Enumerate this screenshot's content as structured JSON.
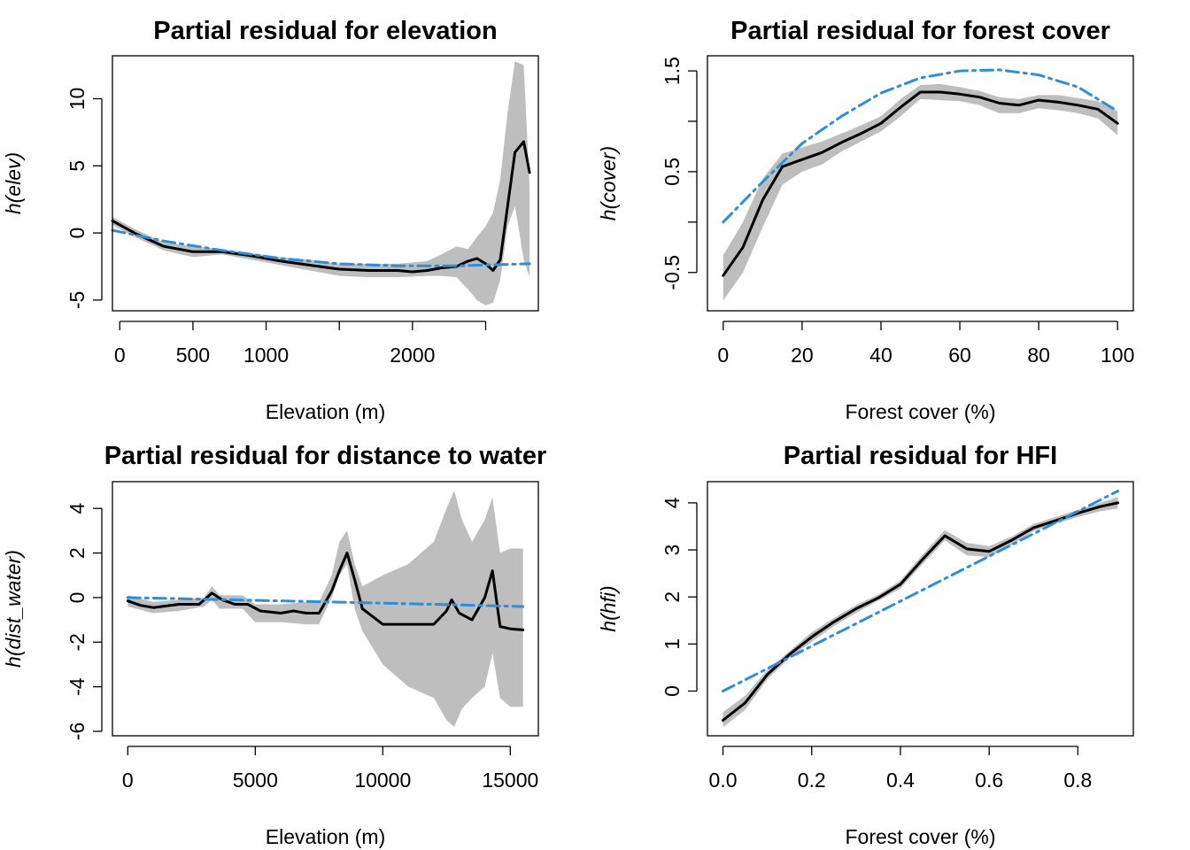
{
  "chart_data": [
    {
      "type": "line",
      "title": "Partial residual for elevation",
      "xlabel": "Elevation (m)",
      "ylabel": "h(elev)",
      "xlim": [
        -50,
        2860
      ],
      "ylim": [
        -5.8,
        13.2
      ],
      "x_ticks": [
        0,
        500,
        1000,
        1500,
        2000,
        2500
      ],
      "x_tick_labels": [
        "0",
        "500",
        "1000",
        "",
        "2000",
        ""
      ],
      "y_ticks": [
        -5,
        0,
        5,
        10
      ],
      "y_tick_labels": [
        "-5",
        "0",
        "5",
        "10"
      ],
      "series": [
        {
          "role": "band",
          "color": "#bebebe",
          "x": [
            -50,
            100,
            300,
            500,
            700,
            900,
            1100,
            1300,
            1500,
            1700,
            1900,
            2100,
            2200,
            2300,
            2380,
            2440,
            2500,
            2550,
            2600,
            2650,
            2700,
            2760,
            2800
          ],
          "upper": [
            1.2,
            0.3,
            -0.7,
            -1.0,
            -1.2,
            -1.5,
            -1.8,
            -2.0,
            -2.3,
            -2.3,
            -2.3,
            -2.1,
            -1.6,
            -1.0,
            -1.2,
            -0.3,
            0.5,
            1.5,
            4.0,
            9.0,
            12.8,
            12.5,
            3.5
          ],
          "lower": [
            0.6,
            -0.3,
            -1.3,
            -1.8,
            -1.6,
            -2.0,
            -2.4,
            -2.8,
            -3.2,
            -3.3,
            -3.3,
            -3.2,
            -3.2,
            -3.3,
            -4.2,
            -5.0,
            -5.4,
            -5.2,
            -3.5,
            0.5,
            2.0,
            -2.0,
            -3.3
          ]
        },
        {
          "role": "fit",
          "color": "#000000",
          "x": [
            -50,
            100,
            300,
            500,
            700,
            900,
            1100,
            1300,
            1500,
            1700,
            1900,
            2000,
            2100,
            2200,
            2300,
            2380,
            2440,
            2500,
            2550,
            2600,
            2650,
            2700,
            2760,
            2800
          ],
          "y": [
            0.9,
            0.0,
            -1.0,
            -1.4,
            -1.4,
            -1.7,
            -2.1,
            -2.4,
            -2.7,
            -2.8,
            -2.8,
            -2.9,
            -2.8,
            -2.6,
            -2.5,
            -2.1,
            -1.9,
            -2.3,
            -2.8,
            -2.0,
            2.0,
            6.0,
            6.8,
            4.5
          ]
        },
        {
          "role": "reference",
          "color": "#2d8fd8",
          "x": [
            -50,
            300,
            700,
            1100,
            1500,
            1900,
            2300,
            2800
          ],
          "y": [
            0.2,
            -0.6,
            -1.3,
            -1.9,
            -2.3,
            -2.45,
            -2.45,
            -2.3
          ]
        }
      ]
    },
    {
      "type": "line",
      "title": "Partial residual for forest cover",
      "xlabel": "Forest cover (%)",
      "ylabel": "h(cover)",
      "xlim": [
        -4,
        104
      ],
      "ylim": [
        -0.88,
        1.65
      ],
      "x_ticks": [
        0,
        20,
        40,
        60,
        80,
        100
      ],
      "x_tick_labels": [
        "0",
        "20",
        "40",
        "60",
        "80",
        "100"
      ],
      "y_ticks": [
        -0.5,
        0,
        0.5,
        1,
        1.5
      ],
      "y_tick_labels": [
        "-0.5",
        "",
        "0.5",
        "",
        "1.5"
      ],
      "series": [
        {
          "role": "band",
          "color": "#bebebe",
          "x": [
            0,
            5,
            10,
            15,
            20,
            25,
            30,
            35,
            40,
            45,
            50,
            55,
            60,
            65,
            70,
            75,
            80,
            85,
            90,
            95,
            100
          ],
          "upper": [
            -0.33,
            0.0,
            0.43,
            0.68,
            0.74,
            0.8,
            0.88,
            0.96,
            1.05,
            1.22,
            1.36,
            1.37,
            1.34,
            1.3,
            1.24,
            1.22,
            1.26,
            1.26,
            1.23,
            1.2,
            1.1
          ],
          "lower": [
            -0.78,
            -0.5,
            -0.05,
            0.37,
            0.5,
            0.57,
            0.7,
            0.8,
            0.9,
            1.05,
            1.22,
            1.21,
            1.2,
            1.16,
            1.08,
            1.08,
            1.13,
            1.11,
            1.08,
            1.03,
            0.86
          ]
        },
        {
          "role": "fit",
          "color": "#000000",
          "x": [
            0,
            5,
            10,
            15,
            20,
            25,
            30,
            35,
            40,
            45,
            50,
            55,
            60,
            65,
            70,
            75,
            80,
            85,
            90,
            95,
            100
          ],
          "y": [
            -0.53,
            -0.25,
            0.22,
            0.55,
            0.62,
            0.69,
            0.79,
            0.88,
            0.98,
            1.14,
            1.29,
            1.29,
            1.27,
            1.24,
            1.18,
            1.16,
            1.21,
            1.19,
            1.16,
            1.12,
            0.98
          ]
        },
        {
          "role": "reference",
          "color": "#2d8fd8",
          "x": [
            0,
            10,
            20,
            30,
            40,
            50,
            60,
            70,
            80,
            90,
            100
          ],
          "y": [
            0.0,
            0.4,
            0.78,
            1.05,
            1.28,
            1.43,
            1.5,
            1.51,
            1.46,
            1.34,
            1.1
          ]
        }
      ]
    },
    {
      "type": "line",
      "title": "Partial residual for distance to water",
      "xlabel": "Elevation (m)",
      "ylabel": "h(dist_water)",
      "xlim": [
        -600,
        16100
      ],
      "ylim": [
        -6.2,
        5.2
      ],
      "x_ticks": [
        0,
        5000,
        10000,
        15000
      ],
      "x_tick_labels": [
        "0",
        "5000",
        "10000",
        "15000"
      ],
      "y_ticks": [
        -6,
        -4,
        -2,
        0,
        2,
        4
      ],
      "y_tick_labels": [
        "-6",
        "-4",
        "-2",
        "0",
        "2",
        "4"
      ],
      "series": [
        {
          "role": "band",
          "color": "#bebebe",
          "x": [
            0,
            1000,
            2000,
            3000,
            3300,
            3600,
            4500,
            5000,
            6000,
            7000,
            7500,
            8000,
            8300,
            8600,
            8900,
            9200,
            10000,
            11000,
            12000,
            12500,
            12800,
            13100,
            13500,
            14000,
            14300,
            14600,
            15000,
            15500
          ],
          "upper": [
            0.1,
            -0.2,
            -0.1,
            0.0,
            0.5,
            0.1,
            0.1,
            -0.3,
            -0.3,
            -0.2,
            -0.2,
            1.0,
            2.5,
            3.0,
            1.5,
            0.5,
            1.0,
            1.5,
            2.5,
            4.0,
            4.8,
            3.5,
            2.5,
            3.5,
            4.5,
            2.0,
            2.2,
            2.2
          ],
          "lower": [
            -0.4,
            -0.7,
            -0.6,
            -0.4,
            -0.1,
            -0.5,
            -0.5,
            -1.1,
            -1.1,
            -1.2,
            -1.2,
            0.0,
            1.0,
            1.5,
            -0.5,
            -1.5,
            -3.0,
            -4.0,
            -4.5,
            -5.5,
            -5.8,
            -5.0,
            -4.5,
            -4.0,
            -2.5,
            -4.5,
            -4.9,
            -4.9
          ]
        },
        {
          "role": "fit",
          "color": "#000000",
          "x": [
            0,
            500,
            1000,
            2000,
            2800,
            3300,
            3700,
            4200,
            4700,
            5200,
            6000,
            6500,
            7000,
            7500,
            8000,
            8300,
            8600,
            8900,
            9200,
            10000,
            11000,
            12000,
            12500,
            12700,
            13000,
            13500,
            14000,
            14300,
            14600,
            15000,
            15500
          ],
          "y": [
            -0.15,
            -0.35,
            -0.45,
            -0.3,
            -0.3,
            0.2,
            -0.1,
            -0.3,
            -0.3,
            -0.6,
            -0.7,
            -0.6,
            -0.7,
            -0.7,
            0.3,
            1.2,
            2.0,
            0.8,
            -0.5,
            -1.2,
            -1.2,
            -1.2,
            -0.6,
            -0.1,
            -0.7,
            -1.0,
            0.0,
            1.2,
            -1.3,
            -1.4,
            -1.45
          ]
        },
        {
          "role": "reference",
          "color": "#2d8fd8",
          "x": [
            0,
            4000,
            8000,
            12000,
            15500
          ],
          "y": [
            0.0,
            -0.1,
            -0.2,
            -0.3,
            -0.4
          ]
        }
      ]
    },
    {
      "type": "line",
      "title": "Partial residual for HFI",
      "xlabel": "Forest cover (%)",
      "ylabel": "h(hfi)",
      "xlim": [
        -0.035,
        0.925
      ],
      "ylim": [
        -0.95,
        4.45
      ],
      "x_ticks": [
        0.0,
        0.2,
        0.4,
        0.6,
        0.8
      ],
      "x_tick_labels": [
        "0.0",
        "0.2",
        "0.4",
        "0.6",
        "0.8"
      ],
      "y_ticks": [
        0,
        1,
        2,
        3,
        4
      ],
      "y_tick_labels": [
        "0",
        "1",
        "2",
        "3",
        "4"
      ],
      "series": [
        {
          "role": "band",
          "color": "#bebebe",
          "x": [
            0.0,
            0.05,
            0.1,
            0.15,
            0.2,
            0.25,
            0.3,
            0.35,
            0.4,
            0.45,
            0.5,
            0.55,
            0.6,
            0.65,
            0.7,
            0.75,
            0.8,
            0.85,
            0.89
          ],
          "upper": [
            -0.45,
            -0.1,
            0.45,
            0.85,
            1.25,
            1.55,
            1.83,
            2.05,
            2.35,
            2.9,
            3.42,
            3.15,
            3.08,
            3.28,
            3.55,
            3.7,
            3.85,
            4.0,
            4.12
          ],
          "lower": [
            -0.77,
            -0.4,
            0.25,
            0.7,
            1.05,
            1.38,
            1.66,
            1.92,
            2.18,
            2.7,
            3.2,
            2.88,
            2.85,
            3.1,
            3.4,
            3.55,
            3.7,
            3.82,
            3.88
          ]
        },
        {
          "role": "fit",
          "color": "#000000",
          "x": [
            0.0,
            0.05,
            0.1,
            0.15,
            0.2,
            0.25,
            0.3,
            0.35,
            0.4,
            0.45,
            0.5,
            0.55,
            0.6,
            0.65,
            0.7,
            0.75,
            0.8,
            0.85,
            0.89
          ],
          "y": [
            -0.62,
            -0.25,
            0.35,
            0.78,
            1.15,
            1.47,
            1.75,
            1.98,
            2.27,
            2.8,
            3.3,
            3.02,
            2.97,
            3.2,
            3.47,
            3.62,
            3.78,
            3.92,
            4.0
          ]
        },
        {
          "role": "reference",
          "color": "#2d8fd8",
          "x": [
            0.0,
            0.89
          ],
          "y": [
            0.0,
            4.25
          ]
        }
      ]
    }
  ]
}
